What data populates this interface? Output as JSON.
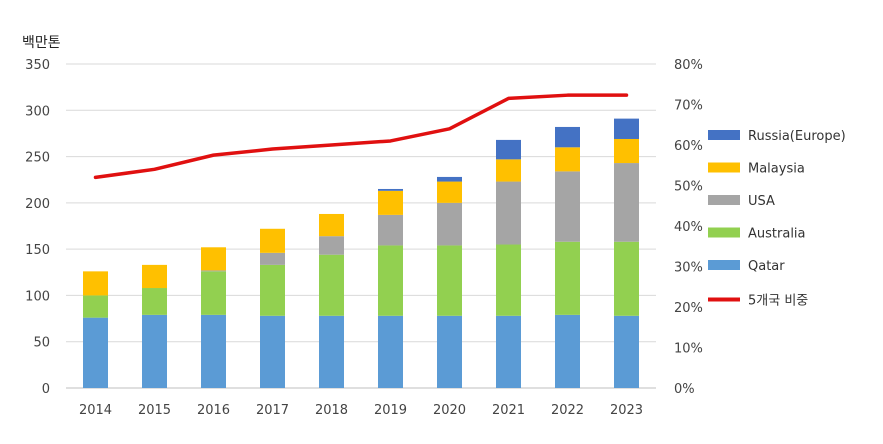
{
  "chart_data": {
    "type": "bar",
    "stacked": true,
    "y_unit_label": "백만톤",
    "categories": [
      "2014",
      "2015",
      "2016",
      "2017",
      "2018",
      "2019",
      "2020",
      "2021",
      "2022",
      "2023"
    ],
    "ylim": [
      0,
      350
    ],
    "yticks": [
      0,
      50,
      100,
      150,
      200,
      250,
      300,
      350
    ],
    "y2lim": [
      0,
      80
    ],
    "y2ticks": [
      "0%",
      "10%",
      "20%",
      "30%",
      "40%",
      "50%",
      "60%",
      "70%",
      "80%"
    ],
    "grid": "horizontal",
    "legend_position": "right",
    "series": [
      {
        "name": "Qatar",
        "color": "#5b9bd5",
        "values": [
          76,
          79,
          79,
          78,
          78,
          78,
          78,
          78,
          79,
          78
        ]
      },
      {
        "name": "Australia",
        "color": "#92d050",
        "values": [
          24,
          29,
          47,
          55,
          66,
          76,
          76,
          77,
          79,
          80
        ]
      },
      {
        "name": "USA",
        "color": "#a5a5a5",
        "values": [
          0,
          0,
          1,
          13,
          20,
          33,
          46,
          68,
          76,
          85
        ]
      },
      {
        "name": "Malaysia",
        "color": "#ffc000",
        "values": [
          26,
          25,
          25,
          26,
          24,
          26,
          23,
          24,
          26,
          26
        ]
      },
      {
        "name": "Russia(Europe)",
        "color": "#4472c4",
        "values": [
          0,
          0,
          0,
          0,
          0,
          2,
          5,
          21,
          22,
          22
        ]
      }
    ],
    "line_series": {
      "name": "5개국 비중",
      "color": "#e01010",
      "axis": "right",
      "values": [
        52,
        54,
        57.5,
        59,
        60,
        61,
        64,
        71.5,
        72.3,
        72.3
      ]
    }
  }
}
